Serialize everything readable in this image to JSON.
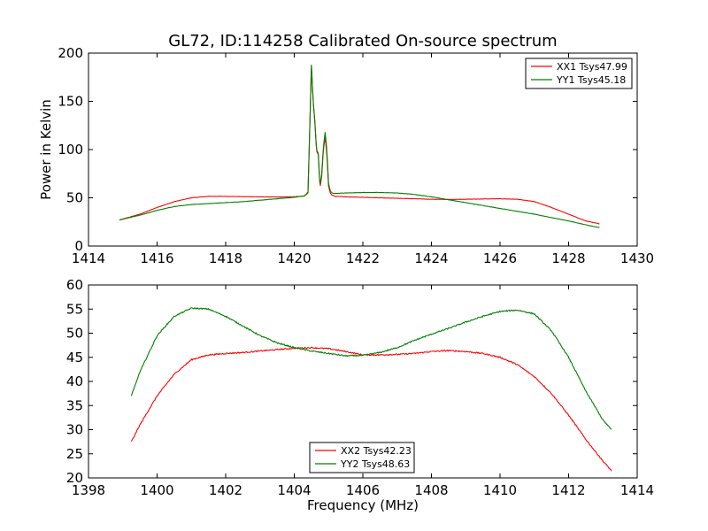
{
  "title": "GL72, ID:114258 Calibrated On-source spectrum",
  "chart_data": [
    {
      "type": "line",
      "ylabel": "Power in Kelvin",
      "xlabel": "",
      "xlim": [
        1414,
        1430
      ],
      "ylim": [
        0,
        200
      ],
      "xticks": [
        "1414",
        "1416",
        "1418",
        "1420",
        "1422",
        "1424",
        "1426",
        "1428",
        "1430"
      ],
      "yticks": [
        "0",
        "50",
        "100",
        "150",
        "200"
      ],
      "legend_position": "top-right",
      "series": [
        {
          "name": "XX1 Tsys47.99",
          "color": "#ff0000",
          "x": [
            1414.9,
            1415.5,
            1416.0,
            1416.5,
            1417.0,
            1417.5,
            1418.0,
            1418.5,
            1419.0,
            1419.5,
            1420.0,
            1420.3,
            1420.4,
            1420.45,
            1420.5,
            1420.55,
            1420.6,
            1420.65,
            1420.7,
            1420.75,
            1420.8,
            1420.85,
            1420.9,
            1420.95,
            1421.0,
            1421.05,
            1421.1,
            1421.2,
            1421.5,
            1422.0,
            1422.5,
            1423.0,
            1423.5,
            1424.0,
            1424.5,
            1425.0,
            1425.5,
            1426.0,
            1426.5,
            1427.0,
            1427.5,
            1428.0,
            1428.5,
            1428.9
          ],
          "y": [
            27,
            33,
            40,
            46,
            50,
            51.5,
            51.5,
            51.2,
            51,
            50.8,
            51,
            52,
            55,
            120,
            187,
            150,
            130,
            98,
            95,
            60,
            72,
            100,
            113,
            95,
            62,
            55,
            53,
            51.5,
            51,
            50.5,
            50,
            49.5,
            49,
            48.5,
            48.3,
            48.5,
            48.8,
            49,
            48.5,
            46,
            40,
            33,
            26,
            23
          ]
        },
        {
          "name": "YY1 Tsys45.18",
          "color": "#008000",
          "x": [
            1414.9,
            1415.5,
            1416.0,
            1416.5,
            1417.0,
            1417.5,
            1418.0,
            1418.5,
            1419.0,
            1419.5,
            1420.0,
            1420.3,
            1420.4,
            1420.45,
            1420.5,
            1420.55,
            1420.6,
            1420.65,
            1420.7,
            1420.75,
            1420.8,
            1420.85,
            1420.9,
            1420.95,
            1421.0,
            1421.05,
            1421.1,
            1421.2,
            1421.5,
            1422.0,
            1422.5,
            1423.0,
            1423.5,
            1424.0,
            1424.5,
            1425.0,
            1425.5,
            1426.0,
            1426.5,
            1427.0,
            1427.5,
            1428.0,
            1428.5,
            1428.9
          ],
          "y": [
            27,
            32,
            37,
            41,
            43,
            44,
            45,
            46,
            47.5,
            49,
            50.5,
            52,
            56,
            120,
            188,
            152,
            128,
            100,
            96,
            62,
            75,
            103,
            118,
            100,
            65,
            57,
            55,
            54.5,
            55,
            55.5,
            55.5,
            55,
            53.5,
            51,
            48,
            45,
            42,
            39,
            36,
            33,
            29.5,
            26,
            22,
            19
          ]
        }
      ]
    },
    {
      "type": "line",
      "xlabel": "Frequency (MHz)",
      "ylabel": "",
      "xlim": [
        1398,
        1414
      ],
      "ylim": [
        20,
        60
      ],
      "xticks": [
        "1398",
        "1400",
        "1402",
        "1404",
        "1406",
        "1408",
        "1410",
        "1412",
        "1414"
      ],
      "yticks": [
        "20",
        "25",
        "30",
        "35",
        "40",
        "45",
        "50",
        "55",
        "60"
      ],
      "legend_position": "bottom-center",
      "series": [
        {
          "name": "XX2 Tsys42.23",
          "color": "#ff0000",
          "x": [
            1399.25,
            1399.5,
            1400.0,
            1400.5,
            1401.0,
            1401.5,
            1402.0,
            1402.5,
            1403.0,
            1403.5,
            1404.0,
            1404.5,
            1405.0,
            1405.5,
            1406.0,
            1406.5,
            1407.0,
            1407.5,
            1408.0,
            1408.5,
            1409.0,
            1409.5,
            1410.0,
            1410.5,
            1411.0,
            1411.5,
            1412.0,
            1412.5,
            1413.0,
            1413.25
          ],
          "y": [
            27.5,
            31,
            37,
            41.5,
            44.5,
            45.5,
            45.8,
            46,
            46.3,
            46.6,
            46.9,
            47,
            46.8,
            46.2,
            45.5,
            45.5,
            45.6,
            45.8,
            46.2,
            46.4,
            46.2,
            45.8,
            45,
            43.5,
            41,
            37.5,
            33,
            28,
            23.5,
            21.5
          ]
        },
        {
          "name": "YY2 Tsys48.63",
          "color": "#008000",
          "x": [
            1399.25,
            1399.5,
            1400.0,
            1400.5,
            1401.0,
            1401.5,
            1402.0,
            1402.5,
            1403.0,
            1403.5,
            1404.0,
            1404.5,
            1405.0,
            1405.5,
            1406.0,
            1406.5,
            1407.0,
            1407.5,
            1408.0,
            1408.5,
            1409.0,
            1409.5,
            1410.0,
            1410.5,
            1411.0,
            1411.5,
            1412.0,
            1412.5,
            1413.0,
            1413.25
          ],
          "y": [
            37,
            42,
            49.5,
            53.5,
            55.2,
            55,
            53.5,
            51.5,
            49.5,
            48,
            47,
            46.3,
            45.8,
            45.3,
            45.4,
            46,
            47,
            48.5,
            49.8,
            51,
            52.3,
            53.5,
            54.5,
            54.8,
            54,
            50.5,
            45,
            38,
            32,
            30
          ]
        }
      ]
    }
  ]
}
